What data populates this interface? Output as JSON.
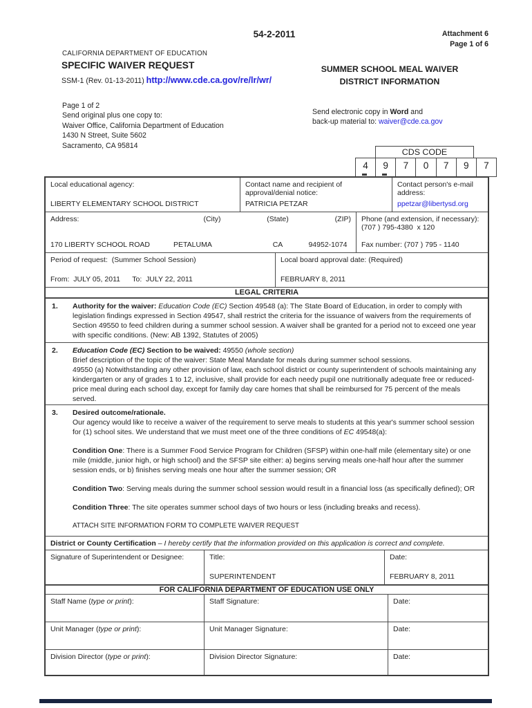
{
  "colors": {
    "link": "#2222dd",
    "border": "#4a4a4a",
    "bottom_bar": "#18233f"
  },
  "header": {
    "doc_number": "54-2-2011",
    "attachment": "Attachment 6",
    "page_of": "Page 1 of 6",
    "dept": "CALIFORNIA DEPARTMENT OF EDUCATION",
    "form_title": "SPECIFIC WAIVER REQUEST",
    "form_rev": "SSM-1 (Rev. 01-13-2011) ",
    "form_url": "http://www.cde.ca.gov/re/lr/wr/",
    "right_title_line1": "SUMMER SCHOOL MEAL WAIVER",
    "right_title_line2": "DISTRICT INFORMATION"
  },
  "mailing": {
    "page_note": "Page 1 of 2",
    "send_to_label": "Send original plus one copy to:",
    "office": "Waiver Office, California Department of Education",
    "street": "1430 N Street, Suite 5602",
    "city": "Sacramento, CA 95814",
    "electronic_line1": [
      {
        "t": "Send electronic copy in "
      },
      {
        "t": "Word",
        "b": true
      },
      {
        "t": " and"
      }
    ],
    "electronic_line2_pre": "back-up material to: ",
    "electronic_email": "waiver@cde.ca.gov"
  },
  "cds": {
    "label": "CDS CODE",
    "digits": [
      "4",
      "9",
      "7",
      "0",
      "7",
      "9",
      "7"
    ]
  },
  "agency": {
    "lea_label": "Local educational agency:",
    "lea_value": "LIBERTY ELEMENTARY SCHOOL DISTRICT",
    "contact_label": "Contact name and recipient of approval/denial notice:",
    "contact_value": "PATRICIA PETZAR",
    "email_label": "Contact person's e-mail address:",
    "email_value": "ppetzar@libertysd.org",
    "address_label": "Address:",
    "city_label": "(City)",
    "state_label": "(State)",
    "zip_label": "(ZIP)",
    "address_value": "170 LIBERTY SCHOOL ROAD",
    "city_value": "PETALUMA",
    "state_value": "CA",
    "zip_value": "94952-1074",
    "phone_label": "Phone (and extension, if necessary):",
    "phone_value": "(707 ) 795-4380  x 120",
    "fax_value": "Fax number: (707 ) 795 - 1140",
    "period_label": "Period of request:  (Summer School Session)",
    "period_value": "From:  JULY 05, 2011      To:  JULY 22, 2011",
    "board_label": "Local board approval date: (Required)",
    "board_value": "FEBRUARY 8, 2011"
  },
  "legal": {
    "band": "LEGAL CRITERIA",
    "item1_num": "1.",
    "item1": [
      {
        "t": "Authority for the waiver: ",
        "b": true
      },
      {
        "t": "Education Code (EC)",
        "i": true
      },
      {
        "t": " Section 49548 (a): The State Board of Education, in order to comply with legislation findings expressed in Section 49547, shall restrict the criteria for the issuance of  waivers from the requirements of Section 49550 to feed children during a summer school session. A waiver shall be granted for a period not to exceed one year with specific conditions. (New: AB 1392, Statutes of 2005)"
      }
    ],
    "item2_num": "2.",
    "item2_head": [
      {
        "t": "Education Code (EC)",
        "b": true,
        "i": true
      },
      {
        "t": " Section to be waived: ",
        "b": true
      },
      {
        "t": "49550  "
      },
      {
        "t": "(whole section)",
        "i": true
      }
    ],
    "item2_line1": "Brief description of the topic of the waiver: State Meal Mandate for meals during summer school sessions.",
    "item2_line2": "49550 (a) Notwithstanding any other provision of law, each school district or county superintendent of schools maintaining any kindergarten or any of grades 1 to 12, inclusive, shall provide for each needy pupil one nutritionally adequate free or reduced-price meal during each school day, except for family day care homes that shall be reimbursed for 75 percent of the meals served.",
    "item3_num": "3.",
    "item3_head": [
      {
        "t": "Desired outcome/rationale.",
        "b": true
      }
    ],
    "item3_p1": [
      {
        "t": "Our agency would like to receive a waiver of the requirement to serve meals to students at this year's summer school session for (1) school sites. We understand that we must meet one of the three conditions of "
      },
      {
        "t": "EC",
        "i": true
      },
      {
        "t": " 49548(a):"
      }
    ],
    "item3_c1": [
      {
        "t": "Condition One",
        "b": true
      },
      {
        "t": ": There is a Summer Food Service Program for Children (SFSP) within one-half mile (elementary site) or one mile (middle, junior high, or high school) and the SFSP site either: a) begins serving meals one-half hour after the summer session ends, or b) finishes serving meals one hour after the summer session; OR"
      }
    ],
    "item3_c2": [
      {
        "t": "Condition Two",
        "b": true
      },
      {
        "t": ": Serving meals during the summer school session would result in a financial loss (as specifically defined); OR"
      }
    ],
    "item3_c3": [
      {
        "t": "Condition Three",
        "b": true
      },
      {
        "t": ": The site operates summer school days of two hours or less (including breaks and recess)."
      }
    ],
    "item3_attach": "ATTACH SITE INFORMATION FORM TO COMPLETE WAIVER REQUEST",
    "certification": [
      {
        "t": "District or County Certification",
        "b": true
      },
      {
        "t": " – "
      },
      {
        "t": "I hereby certify that the information provided on this application is correct and complete.",
        "i": true
      }
    ]
  },
  "signature": {
    "sig_label": "Signature of Superintendent or Designee:",
    "title_label": "Title:",
    "title_value": "SUPERINTENDENT",
    "date_label": "Date:",
    "date_value": "FEBRUARY 8, 2011"
  },
  "cde_use": {
    "band": "FOR CALIFORNIA DEPARTMENT OF EDUCATION USE ONLY",
    "date_label": "Date:",
    "staff_name_label": [
      {
        "t": "Staff Name ("
      },
      {
        "t": "type or print",
        "i": true
      },
      {
        "t": "):"
      }
    ],
    "staff_sig_label": "Staff Signature:",
    "unit_label": [
      {
        "t": "Unit Manager ("
      },
      {
        "t": "type or print",
        "i": true
      },
      {
        "t": "):"
      }
    ],
    "unit_sig_label": "Unit Manager Signature:",
    "div_label": [
      {
        "t": "Division Director ("
      },
      {
        "t": "type or print",
        "i": true
      },
      {
        "t": "):"
      }
    ],
    "div_sig_label": "Division Director Signature:"
  }
}
